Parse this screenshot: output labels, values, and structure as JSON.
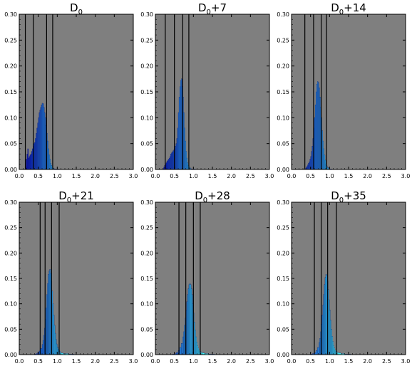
{
  "chart_data": [
    {
      "type": "bar",
      "title_main": "D",
      "title_sub": "0",
      "title_suffix": "",
      "x": [
        0.16,
        0.18,
        0.2,
        0.22,
        0.24,
        0.26,
        0.28,
        0.3,
        0.32,
        0.34,
        0.36,
        0.38,
        0.4,
        0.42,
        0.44,
        0.46,
        0.48,
        0.5,
        0.52,
        0.54,
        0.56,
        0.58,
        0.6,
        0.62,
        0.64,
        0.66,
        0.68,
        0.7,
        0.72,
        0.74,
        0.76,
        0.78,
        0.8,
        0.82,
        0.84,
        0.86,
        0.88,
        0.9,
        0.92,
        0.94,
        0.96,
        0.98,
        1.0,
        1.05,
        1.1
      ],
      "values": [
        0.005,
        0.02,
        0.03,
        0.04,
        0.022,
        0.025,
        0.028,
        0.03,
        0.035,
        0.04,
        0.045,
        0.05,
        0.052,
        0.06,
        0.07,
        0.08,
        0.09,
        0.1,
        0.11,
        0.115,
        0.12,
        0.125,
        0.128,
        0.127,
        0.12,
        0.11,
        0.1,
        0.085,
        0.07,
        0.055,
        0.04,
        0.028,
        0.02,
        0.012,
        0.008,
        0.005,
        0.003,
        0.002,
        0.001,
        0.001,
        0.001,
        0.001,
        0.001,
        0.0005,
        0.0002
      ],
      "vlines": [
        0.16,
        0.37,
        0.72,
        0.88
      ],
      "xlim": [
        0,
        3
      ],
      "ylim": [
        0,
        0.3
      ],
      "xticks": [
        "0.0",
        "0.5",
        "1.0",
        "1.5",
        "2.0",
        "2.5",
        "3.0"
      ],
      "yticks": [
        "0.00",
        "0.05",
        "0.10",
        "0.15",
        "0.20",
        "0.25",
        "0.30"
      ]
    },
    {
      "type": "bar",
      "title_main": "D",
      "title_sub": "0",
      "title_suffix": "+7",
      "x": [
        0.2,
        0.22,
        0.24,
        0.26,
        0.28,
        0.3,
        0.32,
        0.34,
        0.36,
        0.38,
        0.4,
        0.42,
        0.44,
        0.46,
        0.48,
        0.5,
        0.52,
        0.54,
        0.56,
        0.58,
        0.6,
        0.62,
        0.64,
        0.66,
        0.68,
        0.7,
        0.72,
        0.74,
        0.76,
        0.78,
        0.8,
        0.82,
        0.84,
        0.86,
        0.88,
        0.9,
        0.92,
        0.94,
        0.96,
        0.98,
        1.0,
        1.05,
        1.1
      ],
      "values": [
        0.002,
        0.005,
        0.008,
        0.01,
        0.013,
        0.016,
        0.018,
        0.02,
        0.022,
        0.025,
        0.03,
        0.032,
        0.034,
        0.036,
        0.038,
        0.04,
        0.045,
        0.05,
        0.06,
        0.08,
        0.11,
        0.14,
        0.16,
        0.172,
        0.175,
        0.16,
        0.14,
        0.11,
        0.08,
        0.055,
        0.035,
        0.022,
        0.013,
        0.008,
        0.005,
        0.003,
        0.002,
        0.001,
        0.001,
        0.001,
        0.001,
        0.0005,
        0.0002
      ],
      "vlines": [
        0.26,
        0.5,
        0.72,
        0.88
      ],
      "xlim": [
        0,
        3
      ],
      "ylim": [
        0,
        0.3
      ],
      "xticks": [
        "0.0",
        "0.5",
        "1.0",
        "1.5",
        "2.0",
        "2.5",
        "3.0"
      ],
      "yticks": [
        "0.00",
        "0.05",
        "0.10",
        "0.15",
        "0.20",
        "0.25",
        "0.30"
      ]
    },
    {
      "type": "bar",
      "title_main": "D",
      "title_sub": "0",
      "title_suffix": "+14",
      "x": [
        0.36,
        0.38,
        0.4,
        0.42,
        0.44,
        0.46,
        0.48,
        0.5,
        0.52,
        0.54,
        0.56,
        0.58,
        0.6,
        0.62,
        0.64,
        0.66,
        0.68,
        0.7,
        0.72,
        0.74,
        0.76,
        0.78,
        0.8,
        0.82,
        0.84,
        0.86,
        0.88,
        0.9,
        0.92,
        0.94,
        0.96,
        0.98,
        1.0,
        1.02,
        1.04,
        1.06,
        1.1
      ],
      "values": [
        0.002,
        0.004,
        0.006,
        0.009,
        0.012,
        0.015,
        0.02,
        0.025,
        0.035,
        0.045,
        0.06,
        0.08,
        0.1,
        0.125,
        0.15,
        0.165,
        0.17,
        0.168,
        0.158,
        0.14,
        0.12,
        0.1,
        0.075,
        0.055,
        0.04,
        0.028,
        0.018,
        0.011,
        0.007,
        0.004,
        0.003,
        0.002,
        0.001,
        0.001,
        0.001,
        0.0005,
        0.0002
      ],
      "vlines": [
        0.35,
        0.58,
        0.78,
        0.92
      ],
      "xlim": [
        0,
        3
      ],
      "ylim": [
        0,
        0.3
      ],
      "xticks": [
        "0.0",
        "0.5",
        "1.0",
        "1.5",
        "2.0",
        "2.5",
        "3.0"
      ],
      "yticks": [
        "0.00",
        "0.05",
        "0.10",
        "0.15",
        "0.20",
        "0.25",
        "0.30"
      ]
    },
    {
      "type": "bar",
      "title_main": "D",
      "title_sub": "0",
      "title_suffix": "+21",
      "x": [
        0.4,
        0.44,
        0.48,
        0.52,
        0.56,
        0.6,
        0.62,
        0.64,
        0.66,
        0.68,
        0.7,
        0.72,
        0.74,
        0.76,
        0.78,
        0.8,
        0.82,
        0.84,
        0.86,
        0.88,
        0.9,
        0.92,
        0.94,
        0.96,
        0.98,
        1.0,
        1.02,
        1.04,
        1.06,
        1.08,
        1.1,
        1.15,
        1.2,
        1.3,
        1.4
      ],
      "values": [
        0.001,
        0.002,
        0.004,
        0.007,
        0.012,
        0.02,
        0.028,
        0.038,
        0.052,
        0.07,
        0.092,
        0.118,
        0.14,
        0.158,
        0.165,
        0.168,
        0.16,
        0.145,
        0.125,
        0.1,
        0.078,
        0.058,
        0.042,
        0.03,
        0.021,
        0.015,
        0.011,
        0.008,
        0.006,
        0.004,
        0.003,
        0.002,
        0.002,
        0.001,
        0.001
      ],
      "vlines": [
        0.55,
        0.68,
        0.85,
        1.05
      ],
      "xlim": [
        0,
        3
      ],
      "ylim": [
        0,
        0.3
      ],
      "xticks": [
        "0.0",
        "0.5",
        "1.0",
        "1.5",
        "2.0",
        "2.5",
        "3.0"
      ],
      "yticks": [
        "0.00",
        "0.05",
        "0.10",
        "0.15",
        "0.20",
        "0.25",
        "0.30"
      ]
    },
    {
      "type": "bar",
      "title_main": "D",
      "title_sub": "0",
      "title_suffix": "+28",
      "x": [
        0.45,
        0.5,
        0.55,
        0.6,
        0.64,
        0.68,
        0.72,
        0.74,
        0.76,
        0.78,
        0.8,
        0.82,
        0.84,
        0.86,
        0.88,
        0.9,
        0.92,
        0.94,
        0.96,
        0.98,
        1.0,
        1.02,
        1.04,
        1.06,
        1.08,
        1.1,
        1.12,
        1.14,
        1.16,
        1.2,
        1.25,
        1.3,
        1.4,
        1.5
      ],
      "values": [
        0.001,
        0.002,
        0.004,
        0.008,
        0.014,
        0.022,
        0.035,
        0.045,
        0.058,
        0.072,
        0.088,
        0.104,
        0.118,
        0.13,
        0.138,
        0.14,
        0.138,
        0.13,
        0.118,
        0.1,
        0.082,
        0.064,
        0.048,
        0.035,
        0.025,
        0.018,
        0.013,
        0.009,
        0.006,
        0.004,
        0.003,
        0.002,
        0.001,
        0.001
      ],
      "vlines": [
        0.62,
        0.8,
        1.0,
        1.18
      ],
      "xlim": [
        0,
        3
      ],
      "ylim": [
        0,
        0.3
      ],
      "xticks": [
        "0.0",
        "0.5",
        "1.0",
        "1.5",
        "2.0",
        "2.5",
        "3.0"
      ],
      "yticks": [
        "0.00",
        "0.05",
        "0.10",
        "0.15",
        "0.20",
        "0.25",
        "0.30"
      ]
    },
    {
      "type": "bar",
      "title_main": "D",
      "title_sub": "0",
      "title_suffix": "+35",
      "x": [
        0.5,
        0.55,
        0.6,
        0.64,
        0.68,
        0.72,
        0.74,
        0.76,
        0.78,
        0.8,
        0.82,
        0.84,
        0.86,
        0.88,
        0.9,
        0.92,
        0.94,
        0.96,
        0.98,
        1.0,
        1.02,
        1.04,
        1.06,
        1.08,
        1.1,
        1.12,
        1.14,
        1.16,
        1.2,
        1.25,
        1.3,
        1.4,
        1.5
      ],
      "values": [
        0.001,
        0.002,
        0.004,
        0.008,
        0.014,
        0.024,
        0.032,
        0.045,
        0.06,
        0.078,
        0.098,
        0.118,
        0.138,
        0.152,
        0.158,
        0.156,
        0.145,
        0.128,
        0.108,
        0.088,
        0.068,
        0.05,
        0.036,
        0.026,
        0.018,
        0.013,
        0.009,
        0.006,
        0.004,
        0.003,
        0.002,
        0.001,
        0.001
      ],
      "vlines": [
        0.6,
        0.78,
        0.95,
        1.18
      ],
      "xlim": [
        0,
        3
      ],
      "ylim": [
        0,
        0.3
      ],
      "xticks": [
        "0.0",
        "0.5",
        "1.0",
        "1.5",
        "2.0",
        "2.5",
        "3.0"
      ],
      "yticks": [
        "0.00",
        "0.05",
        "0.10",
        "0.15",
        "0.20",
        "0.25",
        "0.30"
      ]
    }
  ],
  "colors": {
    "plot_bg": "#7f7f7f",
    "axis": "#000000",
    "vline": "#000000",
    "bar_low": "#0000b4",
    "bar_high": "#40ffff",
    "bar_edge": "#101060"
  }
}
